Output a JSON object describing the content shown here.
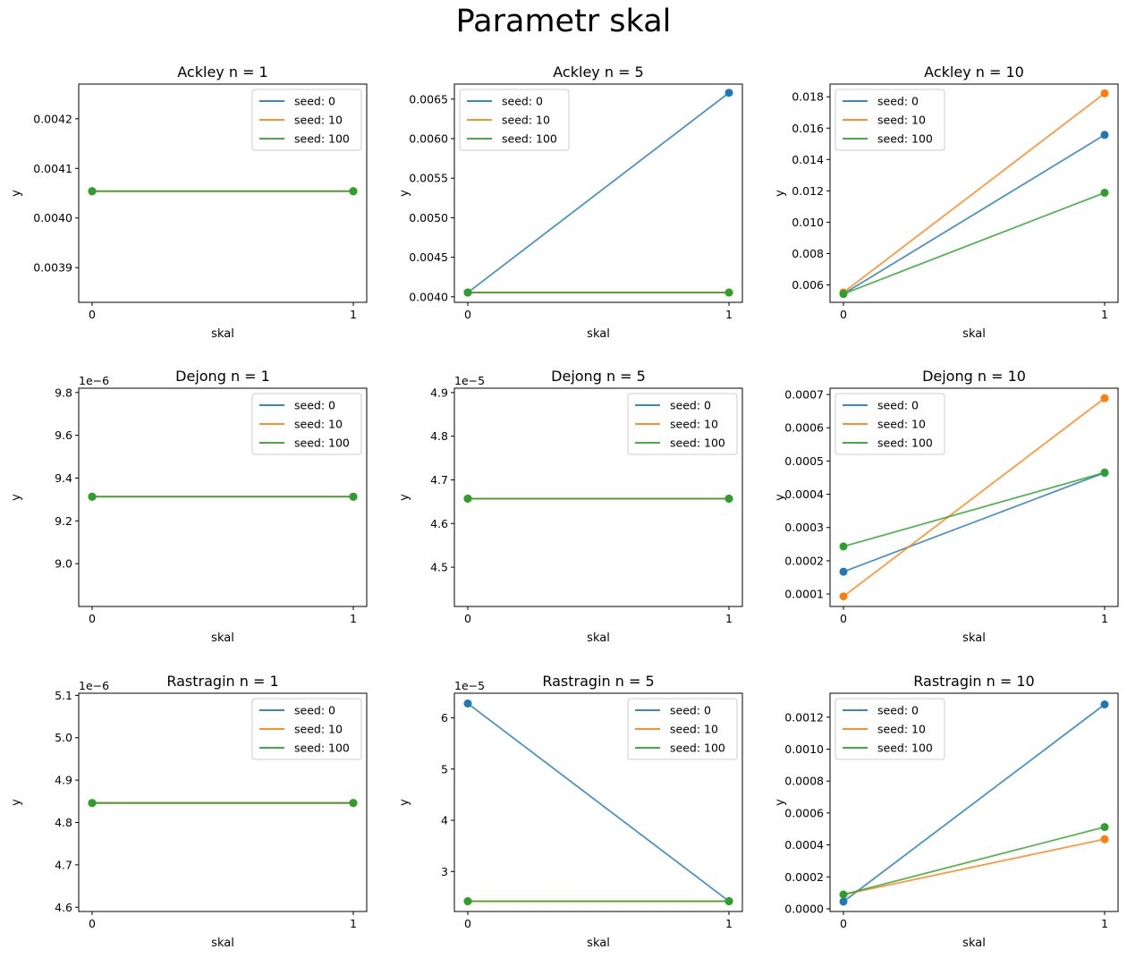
{
  "figure": {
    "title": "Parametr skal"
  },
  "colors": {
    "seed0": "#1f77b4",
    "seed10": "#ff7f0e",
    "seed100": "#2ca02c"
  },
  "chart_data": [
    {
      "type": "line",
      "title": "Ackley n = 1",
      "xlabel": "skal",
      "ylabel": "y",
      "x": [
        0,
        1
      ],
      "xticks": [
        "0",
        "1"
      ],
      "ylim": [
        0.00383,
        0.00427
      ],
      "offset_text": "",
      "yticks": [
        0.0039,
        0.004,
        0.0041,
        0.0042
      ],
      "ytick_labels": [
        "0.0039",
        "0.0040",
        "0.0041",
        "0.0042"
      ],
      "legend": "upper right",
      "series": [
        {
          "name": "seed: 0",
          "values": [
            0.004054,
            0.004054
          ]
        },
        {
          "name": "seed: 10",
          "values": [
            0.004054,
            0.004054
          ]
        },
        {
          "name": "seed: 100",
          "values": [
            0.004054,
            0.004054
          ]
        }
      ]
    },
    {
      "type": "line",
      "title": "Ackley n = 5",
      "xlabel": "skal",
      "ylabel": "y",
      "x": [
        0,
        1
      ],
      "xticks": [
        "0",
        "1"
      ],
      "ylim": [
        0.00393,
        0.00669
      ],
      "offset_text": "",
      "yticks": [
        0.004,
        0.0045,
        0.005,
        0.0055,
        0.006,
        0.0065
      ],
      "ytick_labels": [
        "0.0040",
        "0.0045",
        "0.0050",
        "0.0055",
        "0.0060",
        "0.0065"
      ],
      "legend": "upper left",
      "series": [
        {
          "name": "seed: 0",
          "values": [
            0.004054,
            0.00658
          ]
        },
        {
          "name": "seed: 10",
          "values": [
            0.004054,
            0.004054
          ]
        },
        {
          "name": "seed: 100",
          "values": [
            0.004054,
            0.004054
          ]
        }
      ]
    },
    {
      "type": "line",
      "title": "Ackley n = 10",
      "xlabel": "skal",
      "ylabel": "y",
      "x": [
        0,
        1
      ],
      "xticks": [
        "0",
        "1"
      ],
      "ylim": [
        0.00489,
        0.01881
      ],
      "offset_text": "",
      "yticks": [
        0.006,
        0.008,
        0.01,
        0.012,
        0.014,
        0.016,
        0.018
      ],
      "ytick_labels": [
        "0.006",
        "0.008",
        "0.010",
        "0.012",
        "0.014",
        "0.016",
        "0.018"
      ],
      "legend": "upper left",
      "series": [
        {
          "name": "seed: 0",
          "values": [
            0.00543,
            0.01557
          ]
        },
        {
          "name": "seed: 10",
          "values": [
            0.00552,
            0.01822
          ]
        },
        {
          "name": "seed: 100",
          "values": [
            0.00543,
            0.01188
          ]
        }
      ]
    },
    {
      "type": "line",
      "title": "Dejong n = 1",
      "xlabel": "skal",
      "ylabel": "y",
      "x": [
        0,
        1
      ],
      "xticks": [
        "0",
        "1"
      ],
      "ylim": [
        8.8e-06,
        9.82e-06
      ],
      "offset_text": "1e−6",
      "yticks": [
        9e-06,
        9.2e-06,
        9.4e-06,
        9.6e-06,
        9.8e-06
      ],
      "ytick_labels": [
        "9.0",
        "9.2",
        "9.4",
        "9.6",
        "9.8"
      ],
      "legend": "upper right",
      "series": [
        {
          "name": "seed: 0",
          "values": [
            9.313e-06,
            9.313e-06
          ]
        },
        {
          "name": "seed: 10",
          "values": [
            9.313e-06,
            9.313e-06
          ]
        },
        {
          "name": "seed: 100",
          "values": [
            9.313e-06,
            9.313e-06
          ]
        }
      ]
    },
    {
      "type": "line",
      "title": "Dejong n = 5",
      "xlabel": "skal",
      "ylabel": "y",
      "x": [
        0,
        1
      ],
      "xticks": [
        "0",
        "1"
      ],
      "ylim": [
        4.41e-05,
        4.91e-05
      ],
      "offset_text": "1e−5",
      "yticks": [
        4.5e-05,
        4.6e-05,
        4.7e-05,
        4.8e-05,
        4.9e-05
      ],
      "ytick_labels": [
        "4.5",
        "4.6",
        "4.7",
        "4.8",
        "4.9"
      ],
      "legend": "upper right",
      "series": [
        {
          "name": "seed: 0",
          "values": [
            4.657e-05,
            4.657e-05
          ]
        },
        {
          "name": "seed: 10",
          "values": [
            4.657e-05,
            4.657e-05
          ]
        },
        {
          "name": "seed: 100",
          "values": [
            4.657e-05,
            4.657e-05
          ]
        }
      ]
    },
    {
      "type": "line",
      "title": "Dejong n = 10",
      "xlabel": "skal",
      "ylabel": "y",
      "x": [
        0,
        1
      ],
      "xticks": [
        "0",
        "1"
      ],
      "ylim": [
        6.25e-05,
        0.000719
      ],
      "offset_text": "",
      "yticks": [
        0.0001,
        0.0002,
        0.0003,
        0.0004,
        0.0005,
        0.0006,
        0.0007
      ],
      "ytick_labels": [
        "0.0001",
        "0.0002",
        "0.0003",
        "0.0004",
        "0.0005",
        "0.0006",
        "0.0007"
      ],
      "legend": "upper left",
      "series": [
        {
          "name": "seed: 0",
          "values": [
            0.000167,
            0.000465
          ]
        },
        {
          "name": "seed: 10",
          "values": [
            9.28e-05,
            0.000689
          ]
        },
        {
          "name": "seed: 100",
          "values": [
            0.000243,
            0.000465
          ]
        }
      ]
    },
    {
      "type": "line",
      "title": "Rastragin n = 1",
      "xlabel": "skal",
      "ylabel": "y",
      "x": [
        0,
        1
      ],
      "xticks": [
        "0",
        "1"
      ],
      "ylim": [
        4.59e-06,
        5.105e-06
      ],
      "offset_text": "1e−6",
      "yticks": [
        4.6e-06,
        4.7e-06,
        4.8e-06,
        4.9e-06,
        5e-06,
        5.1e-06
      ],
      "ytick_labels": [
        "4.6",
        "4.7",
        "4.8",
        "4.9",
        "5.0",
        "5.1"
      ],
      "legend": "upper right",
      "series": [
        {
          "name": "seed: 0",
          "values": [
            4.846e-06,
            4.846e-06
          ]
        },
        {
          "name": "seed: 10",
          "values": [
            4.846e-06,
            4.846e-06
          ]
        },
        {
          "name": "seed: 100",
          "values": [
            4.846e-06,
            4.846e-06
          ]
        }
      ]
    },
    {
      "type": "line",
      "title": "Rastragin n = 5",
      "xlabel": "skal",
      "ylabel": "y",
      "x": [
        0,
        1
      ],
      "xticks": [
        "0",
        "1"
      ],
      "ylim": [
        2.22e-05,
        6.48e-05
      ],
      "offset_text": "1e−5",
      "yticks": [
        3e-05,
        4e-05,
        5e-05,
        6e-05
      ],
      "ytick_labels": [
        "3",
        "4",
        "5",
        "6"
      ],
      "legend": "upper right",
      "series": [
        {
          "name": "seed: 0",
          "values": [
            6.28e-05,
            2.42e-05
          ]
        },
        {
          "name": "seed: 10",
          "values": [
            2.42e-05,
            2.42e-05
          ]
        },
        {
          "name": "seed: 100",
          "values": [
            2.42e-05,
            2.42e-05
          ]
        }
      ]
    },
    {
      "type": "line",
      "title": "Rastragin n = 10",
      "xlabel": "skal",
      "ylabel": "y",
      "x": [
        0,
        1
      ],
      "xticks": [
        "0",
        "1"
      ],
      "ylim": [
        -1.69e-05,
        0.00135
      ],
      "offset_text": "",
      "yticks": [
        0.0,
        0.0002,
        0.0004,
        0.0006,
        0.0008,
        0.001,
        0.0012
      ],
      "ytick_labels": [
        "0.0000",
        "0.0002",
        "0.0004",
        "0.0006",
        "0.0008",
        "0.0010",
        "0.0012"
      ],
      "legend": "upper left",
      "series": [
        {
          "name": "seed: 0",
          "values": [
            4.48e-05,
            0.00128
          ]
        },
        {
          "name": "seed: 10",
          "values": [
            8.92e-05,
            0.000436
          ]
        },
        {
          "name": "seed: 100",
          "values": [
            8.92e-05,
            0.000512
          ]
        }
      ]
    }
  ]
}
